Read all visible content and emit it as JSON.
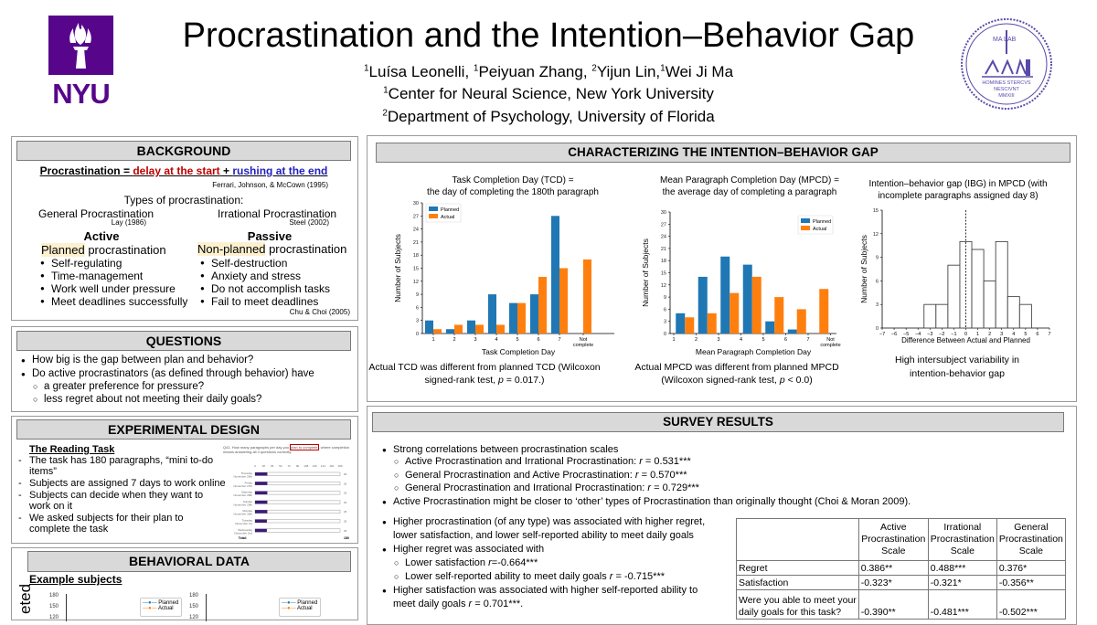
{
  "header": {
    "title": "Procrastination and the Intention–Behavior Gap",
    "authors": [
      {
        "sup": "1",
        "name": "Luísa Leonelli, "
      },
      {
        "sup": "1",
        "name": "Peiyuan Zhang, "
      },
      {
        "sup": "2",
        "name": "Yijun Lin,"
      },
      {
        "sup": "1",
        "name": "Wei Ji Ma"
      }
    ],
    "affiliations": [
      {
        "sup": "1",
        "name": "Center for Neural Science, New York University"
      },
      {
        "sup": "2",
        "name": "Department of Psychology, University of Florida"
      }
    ],
    "left_logo": {
      "text": "NYU",
      "color": "#57068c"
    },
    "right_logo": {
      "top": "MA LAB",
      "motto1": "HOMINES STERCVS",
      "motto2": "NESCIVNT",
      "year": "MMXIII",
      "color": "#5a4aa8"
    }
  },
  "background": {
    "heading": "BACKGROUND",
    "definition": {
      "lhs": "Procrastination = ",
      "delay": "delay at the start",
      "plus": " + ",
      "rush": "rushing at the end",
      "delay_color": "#c00000",
      "rush_color": "#1f1fbf"
    },
    "definition_cite": "Ferrari, Johnson, & McCown (1995)",
    "types_label": "Types of procrastination:",
    "general": {
      "label": "General Procrastination",
      "cite": "Lay (1986)"
    },
    "irrational": {
      "label": "Irrational Procrastination",
      "cite": "Steel (2002)"
    },
    "active": {
      "title": "Active",
      "hl": "Planned",
      "rest": " procrastination",
      "items": [
        "Self-regulating",
        "Time-management",
        "Work well under pressure",
        "Meet deadlines successfully"
      ]
    },
    "passive": {
      "title": "Passive",
      "hl": "Non-planned",
      "rest": " procrastination",
      "items": [
        "Self-destruction",
        "Anxiety and stress",
        "Do not accomplish tasks",
        "Fail to meet deadlines"
      ]
    },
    "cite": "Chu & Choi (2005)"
  },
  "questions": {
    "heading": "QUESTIONS",
    "items": [
      "How big is the gap between plan and behavior?",
      "Do active procrastinators (as defined through behavior) have"
    ],
    "subitems": [
      "a greater preference for pressure?",
      "less regret about not meeting their daily goals?"
    ]
  },
  "design": {
    "heading": "EXPERIMENTAL DESIGN",
    "subheading": "The Reading Task",
    "items": [
      "The task has 180 paragraphs, “mini to-do",
      "items”",
      "Subjects are assigned 7 days to work online",
      "Subjects can decide when they want to",
      "work on it",
      "We asked subjects for their plan to",
      "complete the task"
    ],
    "survey_image": {
      "question_pre": "Q41. How many paragraphs per day you ",
      "question_hl": "plan to complete",
      "question_post": ", where completion",
      "question_line2": "means answering all 4 questions correctly:",
      "ticks": [
        "0",
        "18",
        "36",
        "54",
        "72",
        "90",
        "108",
        "126",
        "144",
        "162",
        "180"
      ],
      "days": [
        "Thursday, November 26th",
        "Friday, November 27th",
        "Saturday, November 28th",
        "Sunday, November 29th",
        "Monday, November 30th",
        "Tuesday, December 1st",
        "Wednesday, December 2nd"
      ],
      "values": [
        26,
        26,
        26,
        26,
        26,
        25,
        25
      ],
      "max": 180,
      "total_label": "Total:",
      "total": "180",
      "bar_color": "#3d1a78"
    }
  },
  "behavioral": {
    "heading": "BEHAVIORAL DATA",
    "subheading": "Example subjects",
    "ylabel_visible": "eted",
    "yticks": [
      "180",
      "150",
      "120"
    ],
    "legend": [
      "Planned",
      "Actual"
    ]
  },
  "characterizing": {
    "heading": "CHARACTERIZING THE INTENTION–BEHAVIOR GAP",
    "captions": [
      [
        "Actual TCD was different from planned TCD (Wilcoxon",
        "signed-rank test, ",
        "p",
        " = 0.017.)"
      ],
      [
        "Actual MPCD was different from planned MPCD",
        "(Wilcoxon signed-rank test, ",
        "p",
        " < 0.0)"
      ],
      [
        "High intersubject variability in",
        "intention-behavior gap"
      ]
    ]
  },
  "colors": {
    "planned": "#1f77b4",
    "actual": "#ff7f0e"
  },
  "chart_data": [
    {
      "type": "bar",
      "title": [
        "Task Completion Day (TCD) =",
        "the day of completing the 180th paragraph"
      ],
      "xlabel": "Task Completion Day",
      "ylabel": "Number of Subjects",
      "categories": [
        "1",
        "2",
        "3",
        "4",
        "5",
        "6",
        "7",
        "Not complete"
      ],
      "series": [
        {
          "name": "Planned",
          "values": [
            3,
            1,
            3,
            9,
            7,
            9,
            27,
            0
          ]
        },
        {
          "name": "Actual",
          "values": [
            1,
            2,
            2,
            2,
            7,
            13,
            15,
            17
          ]
        }
      ],
      "ylim": [
        0,
        30
      ],
      "yticks": [
        0,
        3,
        6,
        9,
        12,
        15,
        18,
        21,
        24,
        27,
        30
      ],
      "legend": "top-left"
    },
    {
      "type": "bar",
      "title": [
        "Mean Paragraph Completion Day (MPCD) =",
        "the average day of completing a paragraph"
      ],
      "xlabel": "Mean Paragraph Completion Day",
      "ylabel": "Number of Subjects",
      "xtick_labels": [
        "1",
        "2",
        "3",
        "4",
        "5",
        "6",
        "7",
        "Not complete"
      ],
      "bins": [
        "1–2",
        "2–3",
        "3–4",
        "4–5",
        "5–6",
        "6–7",
        "7–Not complete"
      ],
      "series": [
        {
          "name": "Planned",
          "values": [
            5,
            14,
            19,
            17,
            3,
            1,
            0
          ]
        },
        {
          "name": "Actual",
          "values": [
            4,
            5,
            10,
            14,
            9,
            6,
            11
          ]
        }
      ],
      "ylim": [
        0,
        30
      ],
      "yticks": [
        0,
        3,
        6,
        9,
        12,
        15,
        18,
        21,
        24,
        27,
        30
      ],
      "legend": "top-right"
    },
    {
      "type": "bar",
      "subtype": "histogram",
      "title": [
        "Intention–behavior gap (IBG) in MPCD (with",
        "incomplete paragraphs assigned day 8)"
      ],
      "xlabel": "Difference Between Actual and Planned",
      "ylabel": "Number of Subjects",
      "bin_edges": [
        -3.5,
        -2.5,
        -1.5,
        -0.5,
        0.5,
        1.5,
        2.5,
        3.5,
        4.5,
        5.5
      ],
      "values": [
        3,
        3,
        8,
        11,
        10,
        6,
        11,
        4,
        3
      ],
      "xlim": [
        -7,
        7
      ],
      "xticks": [
        -7,
        -6,
        -5,
        -4,
        -3,
        -2,
        -1,
        0,
        1,
        2,
        3,
        4,
        5,
        6,
        7
      ],
      "ylim": [
        0,
        15
      ],
      "yticks": [
        0,
        3,
        6,
        9,
        12,
        15
      ],
      "reference_line_x": 0
    }
  ],
  "survey": {
    "heading": "SURVEY RESULTS",
    "lines": [
      {
        "lvl": 1,
        "pre": "Strong correlations between procrastination scales",
        "r": "",
        "post": ""
      },
      {
        "lvl": 2,
        "pre": "Active Procrastination and Irrational Procrastination: ",
        "r": "r",
        "post": " = 0.531***"
      },
      {
        "lvl": 2,
        "pre": "General Procrastination and Active Procrastination: ",
        "r": "r",
        "post": " = 0.570***"
      },
      {
        "lvl": 2,
        "pre": "General Procrastination and Irrational Procrastination: ",
        "r": "r",
        "post": " = 0.729***"
      },
      {
        "lvl": 1,
        "pre": "Active Procrastination might be closer to ‘other’ types of Procrastination than originally thought (Choi & Moran 2009).",
        "r": "",
        "post": ""
      },
      {
        "lvl": 1,
        "pre": "Higher procrastination (of any type) was associated with higher regret,",
        "r": "",
        "post": ""
      },
      {
        "lvl": 0,
        "pre": "lower satisfaction, and lower self-reported ability to meet daily goals",
        "r": "",
        "post": ""
      },
      {
        "lvl": 1,
        "pre": "Higher regret was associated with",
        "r": "",
        "post": ""
      },
      {
        "lvl": 2,
        "pre": "Lower satisfaction ",
        "r": "r",
        "post": "=-0.664***"
      },
      {
        "lvl": 2,
        "pre": "Lower self-reported ability to meet daily goals ",
        "r": "r",
        "post": " = -0.715***"
      },
      {
        "lvl": 1,
        "pre": "Higher satisfaction was associated with higher self-reported ability to",
        "r": "",
        "post": ""
      },
      {
        "lvl": 0,
        "pre": "meet daily goals ",
        "r": "r",
        "post": " = 0.701***."
      }
    ],
    "table": {
      "columns": [
        [
          "Active",
          "Procrastination",
          "Scale"
        ],
        [
          "Irrational",
          "Procrastination",
          "Scale"
        ],
        [
          "General",
          "Procrastination",
          "Scale"
        ]
      ],
      "rows": [
        {
          "label": [
            "Regret"
          ],
          "values": [
            "0.386**",
            "0.488***",
            "0.376*"
          ]
        },
        {
          "label": [
            "Satisfaction"
          ],
          "values": [
            "-0.323*",
            "-0.321*",
            "-0.356**"
          ]
        },
        {
          "label": [
            "Were you able to meet your",
            "daily goals for this task?"
          ],
          "values": [
            "-0.390**",
            "-0.481***",
            "-0.502***"
          ]
        }
      ]
    }
  }
}
